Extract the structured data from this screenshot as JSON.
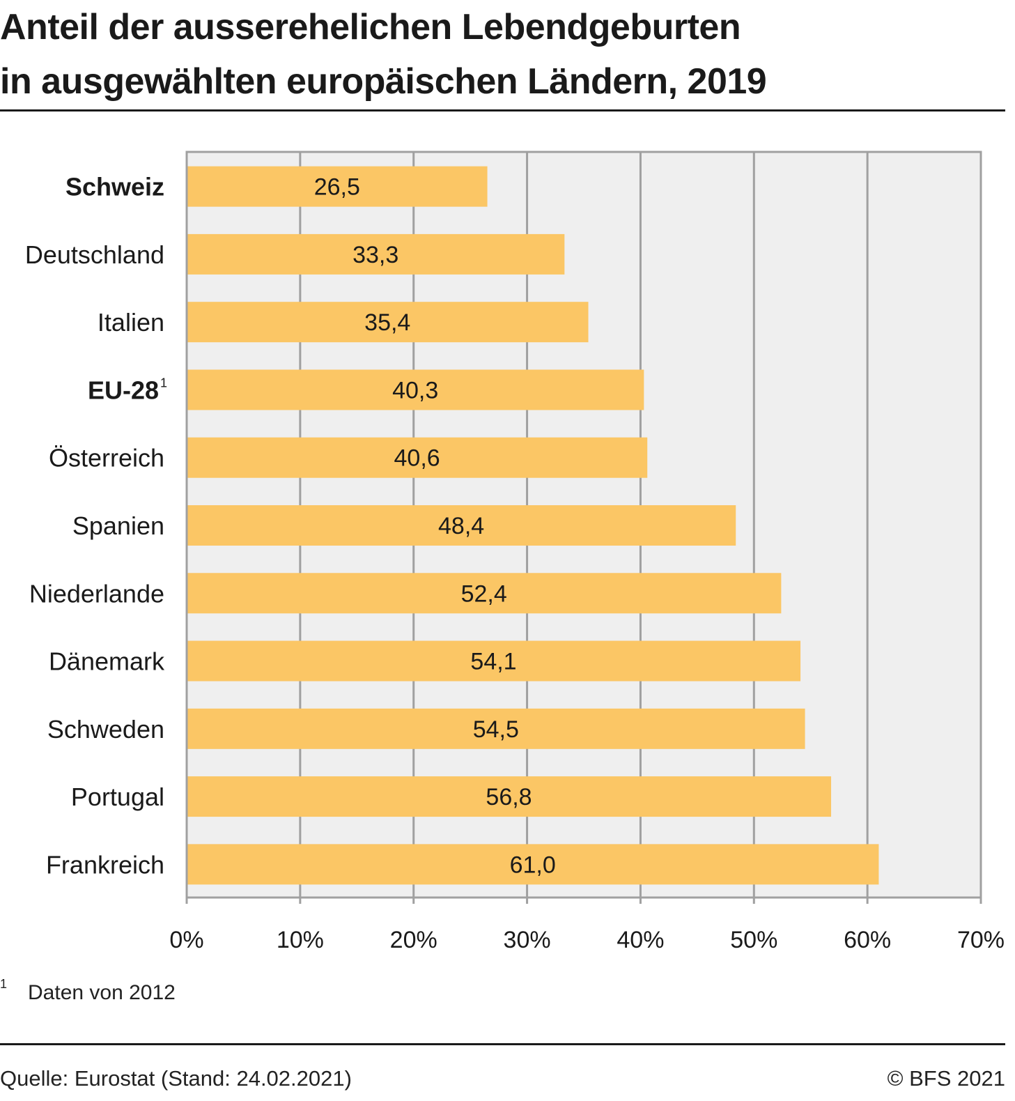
{
  "title": {
    "line1": "Anteil der ausserehelichen Lebendgeburten",
    "line2": "in ausgewählten europäischen Ländern, 2019"
  },
  "chart_data": {
    "type": "bar",
    "orientation": "horizontal",
    "title": "Anteil der ausserehelichen Lebendgeburten in ausgewählten europäischen Ländern, 2019",
    "categories": [
      "Schweiz",
      "Deutschland",
      "Italien",
      "EU-28",
      "Österreich",
      "Spanien",
      "Niederlande",
      "Dänemark",
      "Schweden",
      "Portugal",
      "Frankreich"
    ],
    "category_superscripts": [
      "",
      "",
      "",
      "1",
      "",
      "",
      "",
      "",
      "",
      "",
      ""
    ],
    "bold_categories": [
      "Schweiz",
      "EU-28"
    ],
    "values": [
      26.5,
      33.3,
      35.4,
      40.3,
      40.6,
      48.4,
      52.4,
      54.1,
      54.5,
      56.8,
      61.0
    ],
    "data_labels": [
      "26,5",
      "33,3",
      "35,4",
      "40,3",
      "40,6",
      "48,4",
      "52,4",
      "54,1",
      "54,5",
      "56,8",
      "61,0"
    ],
    "xlabel": "",
    "ylabel": "",
    "xlim": [
      0,
      70
    ],
    "x_ticks": [
      0,
      10,
      20,
      30,
      40,
      50,
      60,
      70
    ],
    "x_tick_labels": [
      "0%",
      "10%",
      "20%",
      "30%",
      "40%",
      "50%",
      "60%",
      "70%"
    ],
    "grid": true,
    "legend": "none",
    "colors": {
      "bar": "#fbc665",
      "plot_bg": "#efefef",
      "grid": "#a0a0a0"
    }
  },
  "footnote": {
    "marker": "1",
    "text": "Daten von 2012"
  },
  "source": "Quelle: Eurostat (Stand: 24.02.2021)",
  "copyright": "© BFS 2021"
}
